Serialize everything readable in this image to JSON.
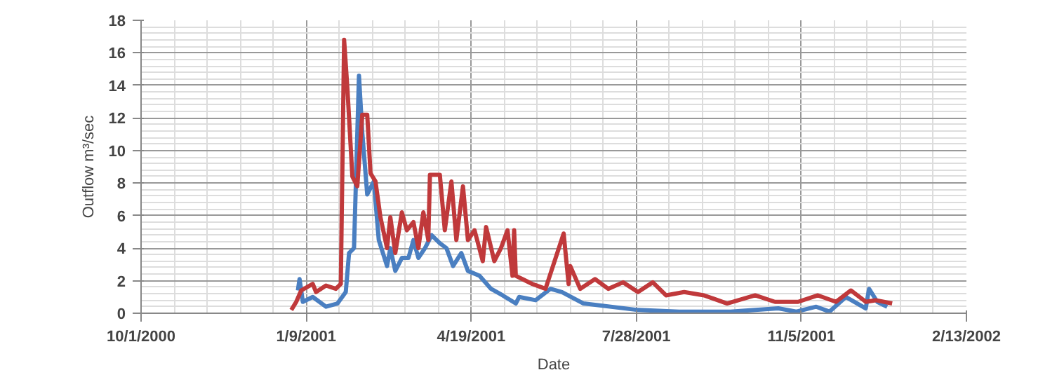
{
  "chart_data": {
    "type": "line",
    "xlabel": "Date",
    "ylabel": "Outflow m³/sec",
    "xlim": [
      "2000-10-01",
      "2002-02-13"
    ],
    "ylim": [
      0,
      18
    ],
    "xticks": [
      {
        "value": "2000-10-01",
        "label": "10/1/2000"
      },
      {
        "value": "2001-01-09",
        "label": "1/9/2001"
      },
      {
        "value": "2001-04-19",
        "label": "4/19/2001"
      },
      {
        "value": "2001-07-28",
        "label": "7/28/2001"
      },
      {
        "value": "2001-11-05",
        "label": "11/5/2001"
      },
      {
        "value": "2002-02-13",
        "label": "2/13/2002"
      }
    ],
    "yticks": [
      0,
      2,
      4,
      6,
      8,
      10,
      12,
      14,
      16,
      18
    ],
    "grid": true,
    "marker": "none",
    "line_style": "solid",
    "series": [
      {
        "color": "#4a7fc1",
        "x": [
          "2001-01-04",
          "2001-01-05",
          "2001-01-07",
          "2001-01-13",
          "2001-01-21",
          "2001-01-28",
          "2001-02-02",
          "2001-02-04",
          "2001-02-07",
          "2001-02-10",
          "2001-02-12",
          "2001-02-15",
          "2001-02-19",
          "2001-02-22",
          "2001-02-27",
          "2001-03-01",
          "2001-03-04",
          "2001-03-08",
          "2001-03-12",
          "2001-03-15",
          "2001-03-18",
          "2001-03-22",
          "2001-03-26",
          "2001-03-31",
          "2001-04-04",
          "2001-04-08",
          "2001-04-13",
          "2001-04-17",
          "2001-04-24",
          "2001-05-01",
          "2001-05-08",
          "2001-05-16",
          "2001-05-18",
          "2001-05-28",
          "2001-06-06",
          "2001-06-13",
          "2001-06-26",
          "2001-07-29",
          "2001-08-23",
          "2001-09-23",
          "2001-10-22",
          "2001-11-02",
          "2001-11-14",
          "2001-11-22",
          "2001-12-02",
          "2001-12-14",
          "2001-12-16",
          "2001-12-21",
          "2001-12-27"
        ],
        "values": [
          1.4,
          2.1,
          0.7,
          1.0,
          0.4,
          0.6,
          1.3,
          3.7,
          4.0,
          14.6,
          11.1,
          7.3,
          8.1,
          4.5,
          2.9,
          4.0,
          2.6,
          3.4,
          3.4,
          4.5,
          3.4,
          4.0,
          4.8,
          4.3,
          4.0,
          2.9,
          3.7,
          2.6,
          2.3,
          1.5,
          1.1,
          0.6,
          1.0,
          0.8,
          1.5,
          1.3,
          0.6,
          0.2,
          0.1,
          0.1,
          0.3,
          0.1,
          0.4,
          0.1,
          1.0,
          0.3,
          1.5,
          0.7,
          0.4
        ]
      },
      {
        "color": "#c0393b",
        "x": [
          "2000-12-31",
          "2001-01-03",
          "2001-01-06",
          "2001-01-13",
          "2001-01-15",
          "2001-01-21",
          "2001-01-27",
          "2001-01-30",
          "2001-02-01",
          "2001-02-03",
          "2001-02-06",
          "2001-02-09",
          "2001-02-12",
          "2001-02-15",
          "2001-02-17",
          "2001-02-20",
          "2001-02-23",
          "2001-02-27",
          "2001-03-01",
          "2001-03-04",
          "2001-03-08",
          "2001-03-11",
          "2001-03-15",
          "2001-03-18",
          "2001-03-21",
          "2001-03-24",
          "2001-03-25",
          "2001-03-31",
          "2001-04-03",
          "2001-04-07",
          "2001-04-10",
          "2001-04-14",
          "2001-04-17",
          "2001-04-21",
          "2001-04-26",
          "2001-04-28",
          "2001-05-03",
          "2001-05-07",
          "2001-05-11",
          "2001-05-14",
          "2001-05-15",
          "2001-05-16",
          "2001-05-20",
          "2001-05-26",
          "2001-06-03",
          "2001-06-14",
          "2001-06-17",
          "2001-06-18",
          "2001-06-24",
          "2001-07-03",
          "2001-07-11",
          "2001-07-20",
          "2001-07-29",
          "2001-08-07",
          "2001-08-15",
          "2001-08-26",
          "2001-09-07",
          "2001-09-21",
          "2001-10-08",
          "2001-10-20",
          "2001-11-03",
          "2001-11-15",
          "2001-11-26",
          "2001-12-05",
          "2001-12-14",
          "2001-12-20",
          "2001-12-30"
        ],
        "values": [
          0.2,
          0.7,
          1.4,
          1.8,
          1.3,
          1.7,
          1.5,
          1.8,
          16.8,
          13.8,
          8.4,
          7.8,
          12.2,
          12.2,
          8.6,
          8.1,
          5.9,
          4.0,
          5.9,
          3.7,
          6.2,
          5.1,
          5.6,
          4.0,
          6.2,
          4.5,
          8.5,
          8.5,
          5.1,
          8.1,
          4.5,
          7.8,
          4.5,
          5.1,
          3.2,
          5.3,
          3.2,
          4.0,
          5.1,
          2.3,
          5.1,
          2.3,
          2.1,
          1.8,
          1.5,
          4.9,
          1.8,
          2.9,
          1.5,
          2.1,
          1.5,
          1.9,
          1.3,
          1.9,
          1.1,
          1.3,
          1.1,
          0.6,
          1.1,
          0.7,
          0.7,
          1.1,
          0.7,
          1.4,
          0.7,
          0.8,
          0.6
        ]
      }
    ]
  }
}
